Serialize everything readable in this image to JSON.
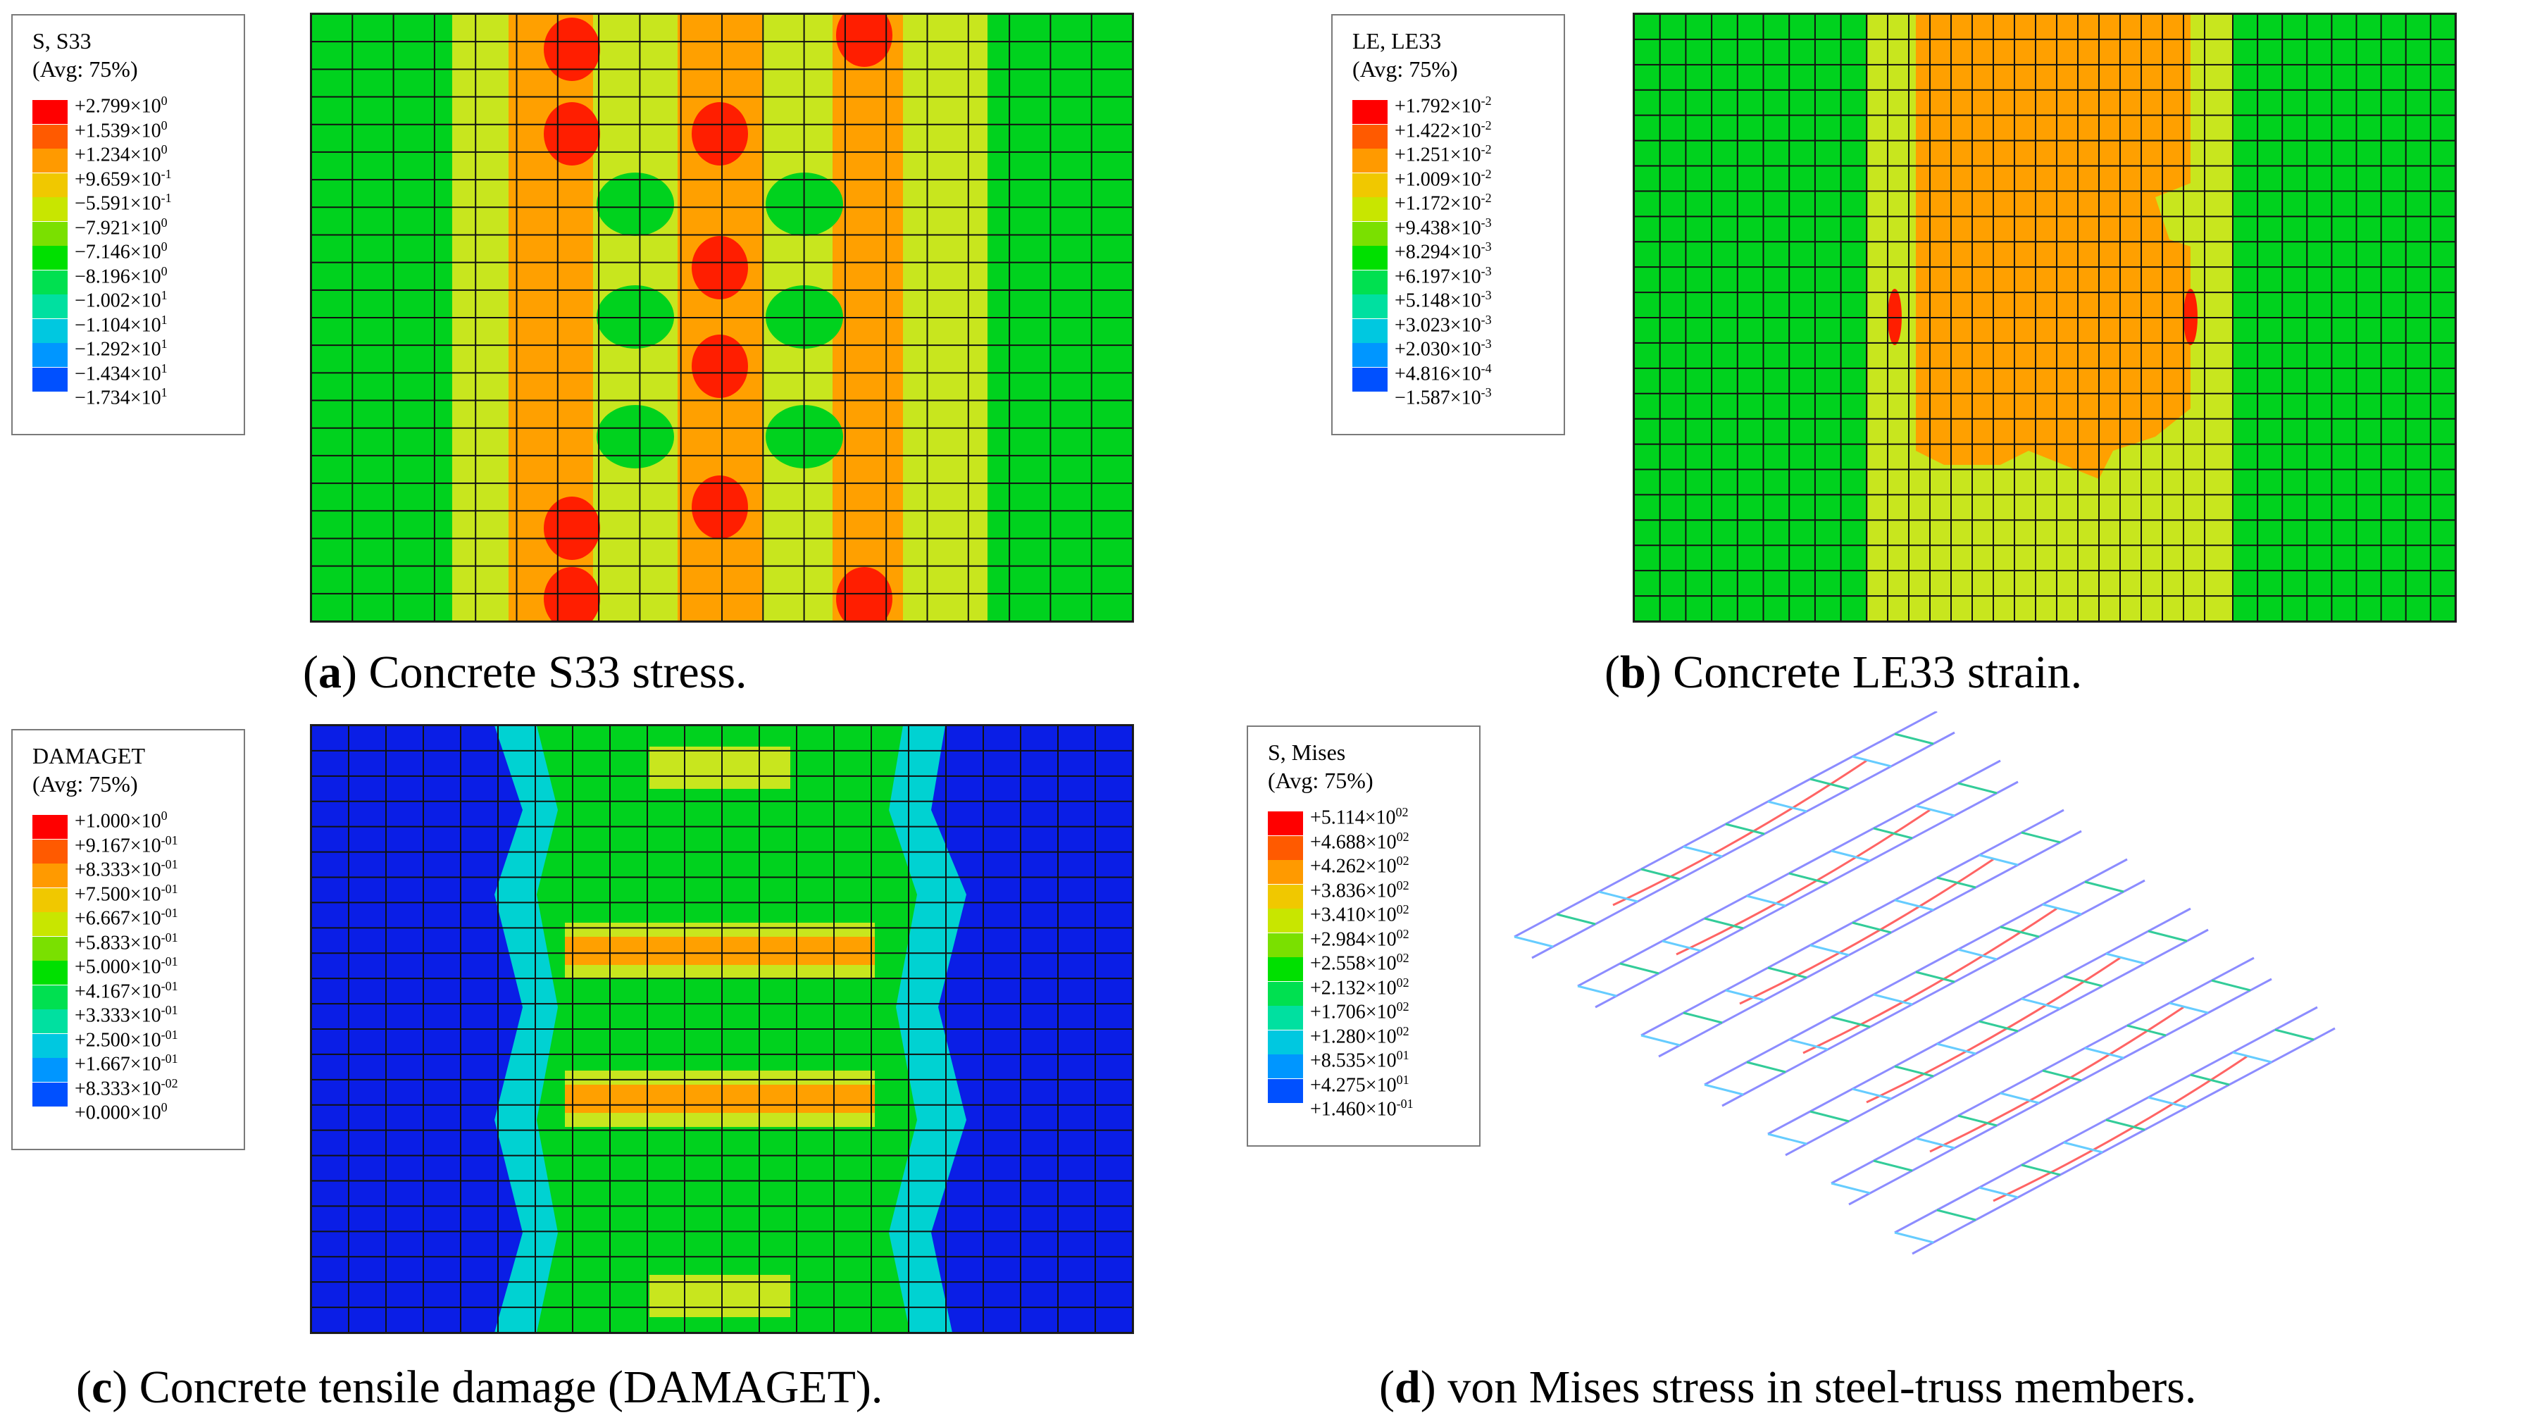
{
  "panels": [
    {
      "id": "a",
      "legend": {
        "title_lines": [
          "S, S33",
          "(Avg: 75%)"
        ],
        "labels": [
          "+2.799×10^0",
          "+1.539×10^0",
          "+1.234×10^0",
          "+9.659×10^-1",
          "−5.591×10^-1",
          "−7.921×10^0",
          "−7.146×10^0",
          "−8.196×10^0",
          "−1.002×10^1",
          "−1.104×10^1",
          "−1.292×10^1",
          "−1.434×10^1",
          "−1.734×10^1"
        ]
      },
      "caption": {
        "letter": "a",
        "text": " Concrete S33 stress."
      }
    },
    {
      "id": "b",
      "legend": {
        "title_lines": [
          "LE, LE33",
          "(Avg: 75%)"
        ],
        "labels": [
          "+1.792×10^-2",
          "+1.422×10^-2",
          "+1.251×10^-2",
          "+1.009×10^-2",
          "+1.172×10^-2",
          "+9.438×10^-3",
          "+8.294×10^-3",
          "+6.197×10^-3",
          "+5.148×10^-3",
          "+3.023×10^-3",
          "+2.030×10^-3",
          "+4.816×10^-4",
          "−1.587×10^-3"
        ]
      },
      "caption": {
        "letter": "b",
        "text": " Concrete LE33 strain."
      }
    },
    {
      "id": "c",
      "legend": {
        "title_lines": [
          "DAMAGET",
          "(Avg: 75%)"
        ],
        "labels": [
          "+1.000×10^0",
          "+9.167×10^-01",
          "+8.333×10^-01",
          "+7.500×10^-01",
          "+6.667×10^-01",
          "+5.833×10^-01",
          "+5.000×10^-01",
          "+4.167×10^-01",
          "+3.333×10^-01",
          "+2.500×10^-01",
          "+1.667×10^-01",
          "+8.333×10^-02",
          "+0.000×10^0"
        ]
      },
      "caption": {
        "letter": "c",
        "text": " Concrete tensile damage (DAMAGET)."
      }
    },
    {
      "id": "d",
      "legend": {
        "title_lines": [
          "S, Mises",
          "(Avg: 75%)"
        ],
        "labels": [
          "+5.114×10^02",
          "+4.688×10^02",
          "+4.262×10^02",
          "+3.836×10^02",
          "+3.410×10^02",
          "+2.984×10^02",
          "+2.558×10^02",
          "+2.132×10^02",
          "+1.706×10^02",
          "+1.280×10^02",
          "+8.535×10^01",
          "+4.275×10^01",
          "+1.460×10^-01"
        ]
      },
      "caption": {
        "letter": "d",
        "text": " von Mises stress in steel-truss members."
      }
    }
  ],
  "colors": {
    "scale": [
      "#ff0000",
      "#ff5a00",
      "#ff9a00",
      "#f0c800",
      "#c8e600",
      "#7ae000",
      "#00e000",
      "#00e050",
      "#00e0a0",
      "#00c8e0",
      "#0096ff",
      "#0050ff",
      "#0000ff"
    ],
    "contour_green": "#00d21e",
    "contour_yellow": "#c8e61e",
    "contour_orange": "#ffa000",
    "contour_red": "#ff1e00",
    "contour_blue": "#0a1ee6",
    "contour_cyan": "#00d2d2",
    "truss_blue": "#8c8cff",
    "truss_red": "#ff6464"
  }
}
